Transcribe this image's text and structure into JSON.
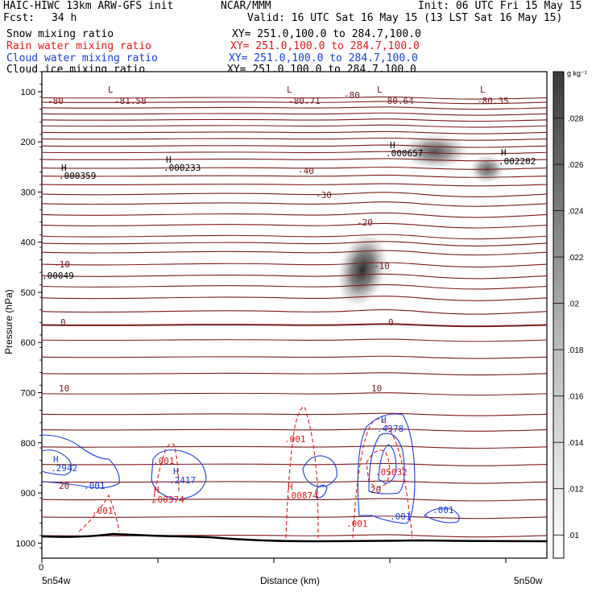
{
  "header": {
    "title_left": "HAIC-HIWC 13km ARW-GFS init",
    "org": "NCAR/MMM",
    "init": "Init: 06 UTC Fri 15 May 15",
    "fcst_label": "Fcst:",
    "fcst_value": "34 h",
    "valid": "Valid: 16 UTC Sat 16 May 15 (13 LST Sat 16 May 15)",
    "fields": [
      {
        "name": "Snow mixing ratio",
        "xy": "XY= 251.0,100.0 to 284.7,100.0",
        "color": "#000000"
      },
      {
        "name": "Rain water mixing ratio",
        "xy": "XY= 251.0,100.0 to 284.7,100.0",
        "color": "#e8181a"
      },
      {
        "name": "Cloud water mixing ratio",
        "xy": "XY= 251.0,100.0 to 284.7,100.0",
        "color": "#1a3ee6"
      },
      {
        "name": "Cloud ice mixing ratio",
        "xy": "XY= 251.0,100.0 to 284.7,100.0",
        "color": "#000000"
      }
    ]
  },
  "chart_data": {
    "type": "contour",
    "ylabel": "Pressure (hPa)",
    "xlabel": "Distance (km)",
    "x_start_label": "5n54w",
    "x_end_label": "5n50w",
    "x_zero_label": "0",
    "ylim": [
      1030,
      60
    ],
    "yticks": [
      100,
      200,
      300,
      400,
      500,
      600,
      700,
      800,
      900,
      1000
    ],
    "colorbar": {
      "unit": "g kg⁻¹",
      "range": [
        0.009,
        0.03
      ],
      "labels": [
        ".01",
        ".012",
        ".014",
        ".016",
        ".018",
        ".02",
        ".022",
        ".024",
        ".026",
        ".028"
      ],
      "label_values": [
        0.01,
        0.012,
        0.014,
        0.016,
        0.018,
        0.02,
        0.022,
        0.024,
        0.026,
        0.028
      ]
    },
    "temperature_labels": [
      "-80",
      "-81.58",
      "-80.71",
      "-80",
      "-80.64",
      "-80.35",
      "-40",
      "-30",
      "-20",
      "-10",
      "-10",
      "0",
      "0",
      "10",
      "10",
      "20",
      "20"
    ],
    "extrema_labels": [
      {
        "marker": "L",
        "value": "-81.58",
        "field": "temperature"
      },
      {
        "marker": "L",
        "value": "-80.71",
        "field": "temperature"
      },
      {
        "marker": "L",
        "value": "-80.64",
        "field": "temperature"
      },
      {
        "marker": "L",
        "value": "-80.35",
        "field": "temperature"
      },
      {
        "marker": "H",
        "value": ".000359",
        "field": "cloud ice"
      },
      {
        "marker": "H",
        "value": ".000233",
        "field": "cloud ice"
      },
      {
        "marker": "H",
        "value": ".000657",
        "field": "cloud ice"
      },
      {
        "marker": "H",
        "value": ".002202",
        "field": "cloud ice"
      },
      {
        "marker": "",
        "value": ".00049",
        "field": "cloud ice"
      },
      {
        "marker": "H",
        "value": ".2942",
        "field": "cloud water"
      },
      {
        "marker": "H",
        "value": ".2417",
        "field": "cloud water"
      },
      {
        "marker": "H",
        "value": ".4378",
        "field": "cloud water"
      },
      {
        "marker": "H",
        "value": ".00374",
        "field": "rain water"
      },
      {
        "marker": "H",
        "value": ".00874",
        "field": "rain water"
      },
      {
        "marker": "",
        "value": ".05032",
        "field": "rain water"
      }
    ],
    "contour_value_labels": [
      {
        "value": ".001",
        "field": "cloud water"
      },
      {
        "value": ".001",
        "field": "cloud water"
      },
      {
        "value": ".001",
        "field": "cloud water"
      },
      {
        "value": ".001",
        "field": "rain water"
      },
      {
        "value": ".001",
        "field": "rain water"
      },
      {
        "value": ".001",
        "field": "rain water"
      },
      {
        "value": ".001",
        "field": "rain water"
      }
    ]
  }
}
